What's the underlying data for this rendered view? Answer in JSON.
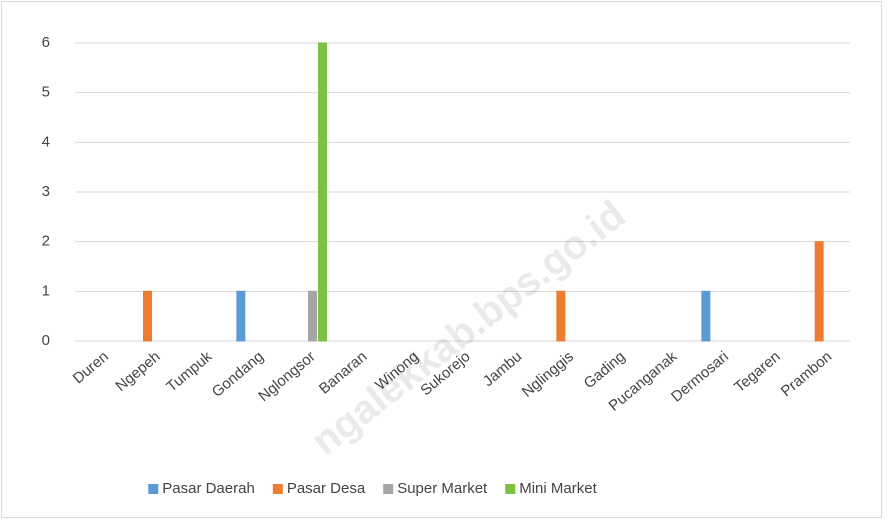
{
  "chart_data": {
    "type": "bar",
    "categories": [
      "Duren",
      "Ngepeh",
      "Tumpuk",
      "Gondang",
      "Nglongsor",
      "Banaran",
      "Winong",
      "Sukorejo",
      "Jambu",
      "Nglinggis",
      "Gading",
      "Pucanganak",
      "Dermosari",
      "Tegaren",
      "Prambon"
    ],
    "series": [
      {
        "name": "Pasar Daerah",
        "color": "#5b9bd5",
        "values": [
          0,
          0,
          0,
          1,
          0,
          0,
          0,
          0,
          0,
          0,
          0,
          0,
          1,
          0,
          0
        ]
      },
      {
        "name": "Pasar Desa",
        "color": "#ed7d31",
        "values": [
          0,
          1,
          0,
          0,
          0,
          0,
          0,
          0,
          0,
          1,
          0,
          0,
          0,
          0,
          2
        ]
      },
      {
        "name": "Super Market",
        "color": "#a5a5a5",
        "values": [
          0,
          0,
          0,
          0,
          1,
          0,
          0,
          0,
          0,
          0,
          0,
          0,
          0,
          0,
          0
        ]
      },
      {
        "name": "Mini Market",
        "color": "#7cc242",
        "values": [
          0,
          0,
          0,
          0,
          6,
          0,
          0,
          0,
          0,
          0,
          0,
          0,
          0,
          0,
          0
        ]
      }
    ],
    "ylim": [
      0,
      6
    ],
    "yticks": [
      0,
      1,
      2,
      3,
      4,
      5,
      6
    ],
    "grid": true,
    "legend": "bottom",
    "watermark": "ngalekkab.bps.go.id"
  }
}
